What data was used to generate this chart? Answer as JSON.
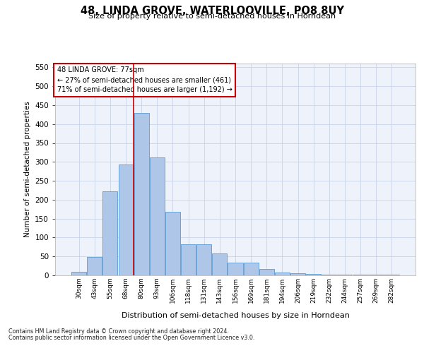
{
  "title": "48, LINDA GROVE, WATERLOOVILLE, PO8 8UY",
  "subtitle": "Size of property relative to semi-detached houses in Horndean",
  "xlabel": "Distribution of semi-detached houses by size in Horndean",
  "ylabel": "Number of semi-detached properties",
  "footnote1": "Contains HM Land Registry data © Crown copyright and database right 2024.",
  "footnote2": "Contains public sector information licensed under the Open Government Licence v3.0.",
  "annotation_title": "48 LINDA GROVE: 77sqm",
  "annotation_line1": "← 27% of semi-detached houses are smaller (461)",
  "annotation_line2": "71% of semi-detached houses are larger (1,192) →",
  "bar_labels": [
    "30sqm",
    "43sqm",
    "55sqm",
    "68sqm",
    "80sqm",
    "93sqm",
    "106sqm",
    "118sqm",
    "131sqm",
    "143sqm",
    "156sqm",
    "169sqm",
    "181sqm",
    "194sqm",
    "206sqm",
    "219sqm",
    "232sqm",
    "244sqm",
    "257sqm",
    "269sqm",
    "282sqm"
  ],
  "bar_values": [
    10,
    48,
    222,
    293,
    430,
    311,
    168,
    82,
    82,
    57,
    33,
    33,
    16,
    7,
    5,
    3,
    2,
    2,
    1,
    1,
    2
  ],
  "bar_color": "#aec6e8",
  "bar_edge_color": "#5b9bd5",
  "property_line_color": "#cc0000",
  "annotation_box_color": "#cc0000",
  "background_color": "#eef2fa",
  "ylim": [
    0,
    560
  ],
  "yticks": [
    0,
    50,
    100,
    150,
    200,
    250,
    300,
    350,
    400,
    450,
    500,
    550
  ],
  "grid_color": "#c8d4e8",
  "property_line_x": 3.5
}
